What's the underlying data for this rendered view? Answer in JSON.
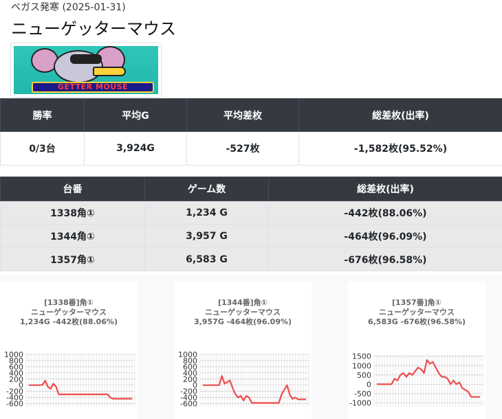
{
  "header": {
    "store_line": "ベガス発寒 (2025-01-31)",
    "title": "ニューゲッターマウス",
    "banner_logo_text": "GETTER MOUSE"
  },
  "summary": {
    "headers": [
      "勝率",
      "平均G",
      "平均差枚",
      "総差枚(出率)"
    ],
    "values": [
      "0/3台",
      "3,924G",
      "-527枚",
      "-1,582枚(95.52%)"
    ]
  },
  "machines": {
    "headers": [
      "台番",
      "ゲーム数",
      "総差枚(出率)"
    ],
    "rows": [
      [
        "1338角①",
        "1,234 G",
        "-442枚(88.06%)"
      ],
      [
        "1344角①",
        "3,957 G",
        "-464枚(96.09%)"
      ],
      [
        "1357角①",
        "6,583 G",
        "-676枚(96.58%)"
      ]
    ]
  },
  "colors": {
    "line": "#f04a4a",
    "header_bg": "#343a40",
    "row_bg": "#e9e9e9"
  },
  "chart_data": [
    {
      "type": "line",
      "title_lines": [
        "[1338番]角①",
        "ニューゲッターマウス",
        "1,234G -442枚(88.06%)"
      ],
      "yticks": [
        "1000",
        "800",
        "600",
        "400",
        "200",
        "0",
        "-200",
        "-400",
        "-600"
      ],
      "ylim": [
        -700,
        1000
      ],
      "values": [
        0,
        0,
        0,
        0,
        0,
        10,
        150,
        -50,
        -120,
        50,
        -50,
        -300,
        -300,
        -300,
        -300,
        -300,
        -300,
        -300,
        -300,
        -300,
        -300,
        -300,
        -300,
        -300,
        -300,
        -300,
        -300,
        -300,
        -300,
        -300,
        -400,
        -442,
        -442,
        -442,
        -442,
        -442,
        -442,
        -442,
        -442
      ]
    },
    {
      "type": "line",
      "title_lines": [
        "[1344番]角①",
        "ニューゲッターマウス",
        "3,957G -464枚(96.09%)"
      ],
      "yticks": [
        "1000",
        "800",
        "600",
        "400",
        "200",
        "0",
        "-200",
        "-400",
        "-600"
      ],
      "ylim": [
        -700,
        1000
      ],
      "values": [
        0,
        0,
        0,
        0,
        0,
        0,
        0,
        300,
        50,
        100,
        150,
        -100,
        -300,
        -400,
        -350,
        -500,
        -350,
        -400,
        -580,
        -580,
        -580,
        -580,
        -580,
        -580,
        -580,
        -580,
        -580,
        -580,
        -580,
        -300,
        -150,
        0,
        -300,
        -450,
        -400,
        -464,
        -464,
        -464,
        -464
      ]
    },
    {
      "type": "line",
      "title_lines": [
        "[1357番]角①",
        "ニューゲッターマウス",
        "6,583G -676枚(96.58%)"
      ],
      "yticks": [
        "1500",
        "1000",
        "500",
        "0",
        "-500",
        "-1000"
      ],
      "ylim": [
        -1200,
        1600
      ],
      "values": [
        0,
        0,
        0,
        0,
        0,
        0,
        300,
        200,
        500,
        600,
        400,
        600,
        500,
        700,
        900,
        800,
        600,
        1300,
        1100,
        1200,
        900,
        600,
        400,
        400,
        300,
        0,
        200,
        0,
        100,
        -200,
        -300,
        -400,
        -676,
        -676,
        -676,
        -676
      ]
    }
  ]
}
